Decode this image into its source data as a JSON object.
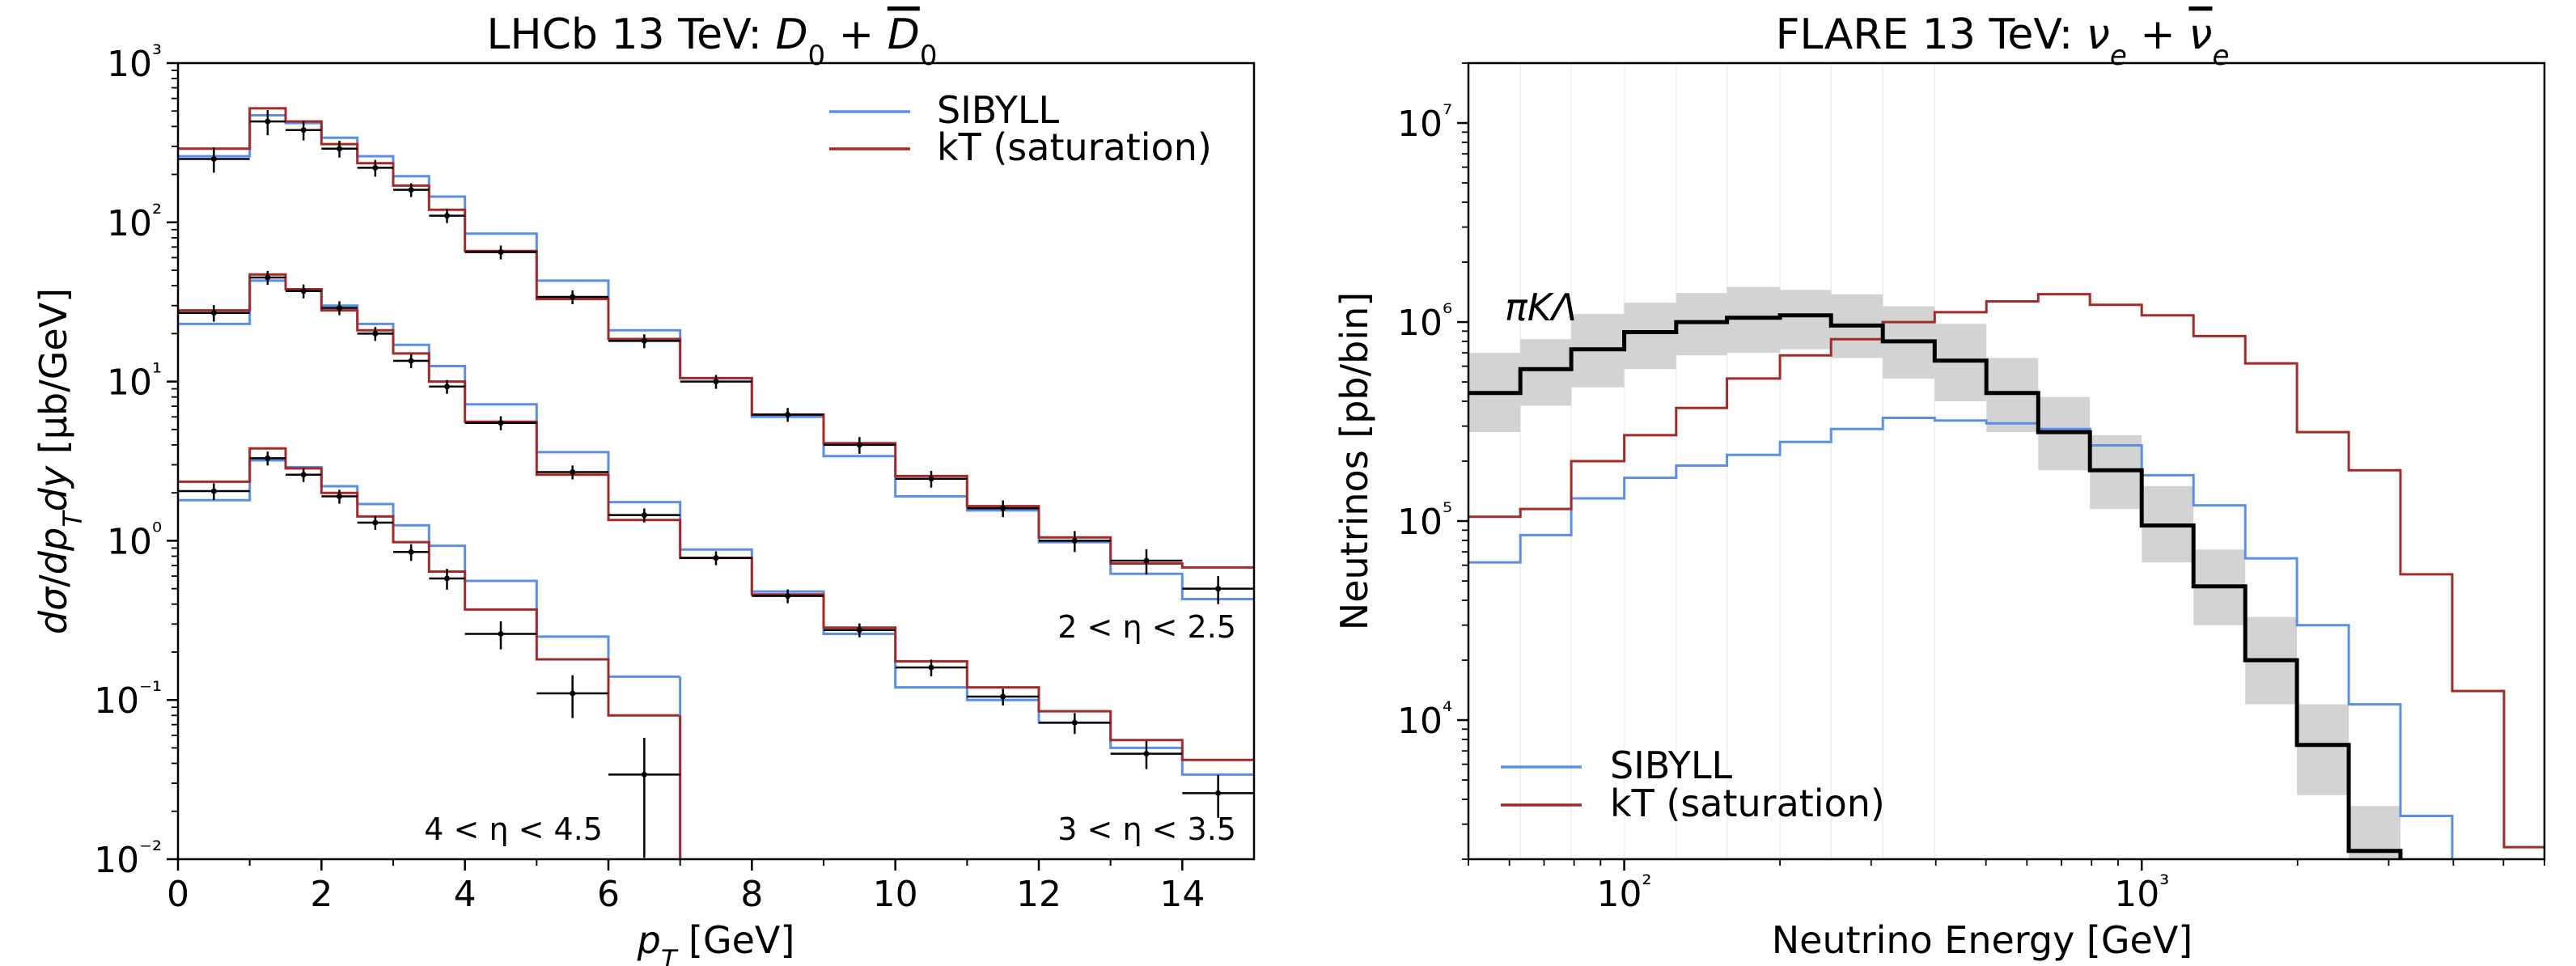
{
  "colors": {
    "sibyll": "#5b8fe6",
    "kt": "#a32a2a",
    "data": "#000000",
    "band": "#d3d3d3"
  },
  "chart_data": [
    {
      "type": "line",
      "title": "LHCb 13 TeV: D₀ + D̄₀",
      "xlabel": "p_T [GeV]",
      "ylabel": "dσ/dp_T dy [μb/GeV]",
      "xscale": "linear",
      "yscale": "log",
      "xlim": [
        0,
        15
      ],
      "ylim": [
        0.01,
        1000
      ],
      "x_ticks": [
        "0",
        "2",
        "4",
        "6",
        "8",
        "10",
        "12",
        "14"
      ],
      "y_ticks": [
        "10⁻²",
        "10⁻¹",
        "10⁰",
        "10¹",
        "10²",
        "10³"
      ],
      "legend": {
        "position": "top-right",
        "entries": [
          "SIBYLL",
          "kT (saturation)"
        ]
      },
      "bin_edges": [
        0,
        1,
        1.5,
        2,
        2.5,
        3,
        3.5,
        4,
        5,
        6,
        7,
        8,
        9,
        10,
        11,
        12,
        13,
        14,
        15
      ],
      "groups": [
        {
          "label": "2 < η < 2.5",
          "series": [
            {
              "name": "SIBYLL",
              "values": [
                260,
                470,
                420,
                340,
                260,
                195,
                145,
                85,
                43,
                21,
                10.5,
                6.0,
                3.4,
                1.9,
                1.55,
                0.98,
                0.62,
                0.43
              ]
            },
            {
              "name": "kT (saturation)",
              "values": [
                290,
                520,
                430,
                310,
                235,
                170,
                120,
                66,
                33,
                18.5,
                10.5,
                6.2,
                4.1,
                2.55,
                1.65,
                1.05,
                0.72,
                0.68
              ]
            }
          ],
          "points": [
            {
              "x": 0.5,
              "y": 250,
              "xerr": 0.5,
              "yerr_frac": 0.18
            },
            {
              "x": 1.25,
              "y": 430,
              "xerr": 0.25,
              "yerr_frac": 0.18
            },
            {
              "x": 1.75,
              "y": 380,
              "xerr": 0.25,
              "yerr_frac": 0.14
            },
            {
              "x": 2.25,
              "y": 290,
              "xerr": 0.25,
              "yerr_frac": 0.12
            },
            {
              "x": 2.75,
              "y": 220,
              "xerr": 0.25,
              "yerr_frac": 0.12
            },
            {
              "x": 3.25,
              "y": 160,
              "xerr": 0.25,
              "yerr_frac": 0.1
            },
            {
              "x": 3.75,
              "y": 110,
              "xerr": 0.25,
              "yerr_frac": 0.1
            },
            {
              "x": 4.5,
              "y": 65,
              "xerr": 0.5,
              "yerr_frac": 0.1
            },
            {
              "x": 5.5,
              "y": 34,
              "xerr": 0.5,
              "yerr_frac": 0.1
            },
            {
              "x": 6.5,
              "y": 18,
              "xerr": 0.5,
              "yerr_frac": 0.1
            },
            {
              "x": 7.5,
              "y": 10,
              "xerr": 0.5,
              "yerr_frac": 0.1
            },
            {
              "x": 8.5,
              "y": 6.2,
              "xerr": 0.5,
              "yerr_frac": 0.1
            },
            {
              "x": 9.5,
              "y": 4.0,
              "xerr": 0.5,
              "yerr_frac": 0.12
            },
            {
              "x": 10.5,
              "y": 2.45,
              "xerr": 0.5,
              "yerr_frac": 0.12
            },
            {
              "x": 11.5,
              "y": 1.6,
              "xerr": 0.5,
              "yerr_frac": 0.12
            },
            {
              "x": 12.5,
              "y": 1.0,
              "xerr": 0.5,
              "yerr_frac": 0.15
            },
            {
              "x": 13.5,
              "y": 0.75,
              "xerr": 0.5,
              "yerr_frac": 0.18
            },
            {
              "x": 14.5,
              "y": 0.5,
              "xerr": 0.5,
              "yerr_frac": 0.2
            }
          ]
        },
        {
          "label": "3 < η < 3.5",
          "series": [
            {
              "name": "SIBYLL",
              "values": [
                23,
                43,
                38,
                30,
                23,
                17,
                12.5,
                7.2,
                3.6,
                1.75,
                0.88,
                0.48,
                0.26,
                0.12,
                0.1,
                0.072,
                0.05,
                0.034
              ]
            },
            {
              "name": "kT (saturation)",
              "values": [
                28,
                47,
                38,
                28,
                21,
                15,
                10,
                5.6,
                2.6,
                1.35,
                0.78,
                0.46,
                0.285,
                0.175,
                0.12,
                0.085,
                0.056,
                0.042
              ]
            }
          ],
          "points": [
            {
              "x": 0.5,
              "y": 27,
              "xerr": 0.5,
              "yerr_frac": 0.12
            },
            {
              "x": 1.25,
              "y": 45,
              "xerr": 0.25,
              "yerr_frac": 0.1
            },
            {
              "x": 1.75,
              "y": 37,
              "xerr": 0.25,
              "yerr_frac": 0.1
            },
            {
              "x": 2.25,
              "y": 29,
              "xerr": 0.25,
              "yerr_frac": 0.1
            },
            {
              "x": 2.75,
              "y": 20,
              "xerr": 0.25,
              "yerr_frac": 0.1
            },
            {
              "x": 3.25,
              "y": 13.5,
              "xerr": 0.25,
              "yerr_frac": 0.1
            },
            {
              "x": 3.75,
              "y": 9.3,
              "xerr": 0.25,
              "yerr_frac": 0.1
            },
            {
              "x": 4.5,
              "y": 5.5,
              "xerr": 0.5,
              "yerr_frac": 0.1
            },
            {
              "x": 5.5,
              "y": 2.7,
              "xerr": 0.5,
              "yerr_frac": 0.1
            },
            {
              "x": 6.5,
              "y": 1.45,
              "xerr": 0.5,
              "yerr_frac": 0.1
            },
            {
              "x": 7.5,
              "y": 0.78,
              "xerr": 0.5,
              "yerr_frac": 0.1
            },
            {
              "x": 8.5,
              "y": 0.45,
              "xerr": 0.5,
              "yerr_frac": 0.1
            },
            {
              "x": 9.5,
              "y": 0.275,
              "xerr": 0.5,
              "yerr_frac": 0.1
            },
            {
              "x": 10.5,
              "y": 0.16,
              "xerr": 0.5,
              "yerr_frac": 0.12
            },
            {
              "x": 11.5,
              "y": 0.105,
              "xerr": 0.5,
              "yerr_frac": 0.12
            },
            {
              "x": 12.5,
              "y": 0.072,
              "xerr": 0.5,
              "yerr_frac": 0.15
            },
            {
              "x": 13.5,
              "y": 0.046,
              "xerr": 0.5,
              "yerr_frac": 0.2
            },
            {
              "x": 14.5,
              "y": 0.026,
              "xerr": 0.5,
              "yerr_frac": 0.3
            }
          ]
        },
        {
          "label": "4 < η < 4.5",
          "series": [
            {
              "name": "SIBYLL",
              "values": [
                1.8,
                3.2,
                2.9,
                2.2,
                1.7,
                1.25,
                0.93,
                0.56,
                0.25,
                0.14
              ]
            },
            {
              "name": "kT (saturation)",
              "values": [
                2.35,
                3.8,
                2.85,
                2.0,
                1.42,
                0.98,
                0.64,
                0.37,
                0.18,
                0.08
              ]
            }
          ],
          "points": [
            {
              "x": 0.5,
              "y": 2.05,
              "xerr": 0.5,
              "yerr_frac": 0.12
            },
            {
              "x": 1.25,
              "y": 3.3,
              "xerr": 0.25,
              "yerr_frac": 0.1
            },
            {
              "x": 1.75,
              "y": 2.6,
              "xerr": 0.25,
              "yerr_frac": 0.1
            },
            {
              "x": 2.25,
              "y": 1.9,
              "xerr": 0.25,
              "yerr_frac": 0.1
            },
            {
              "x": 2.75,
              "y": 1.3,
              "xerr": 0.25,
              "yerr_frac": 0.1
            },
            {
              "x": 3.25,
              "y": 0.85,
              "xerr": 0.25,
              "yerr_frac": 0.12
            },
            {
              "x": 3.75,
              "y": 0.58,
              "xerr": 0.25,
              "yerr_frac": 0.15
            },
            {
              "x": 4.5,
              "y": 0.26,
              "xerr": 0.5,
              "yerr_frac": 0.2
            },
            {
              "x": 5.5,
              "y": 0.11,
              "xerr": 0.5,
              "yerr_frac": 0.3
            },
            {
              "x": 6.5,
              "y": 0.034,
              "xerr": 0.5,
              "yerr_frac": 0.7
            }
          ]
        }
      ]
    },
    {
      "type": "line",
      "title": "FLARE 13 TeV: νₑ + ν̄ₑ",
      "xlabel": "Neutrino Energy [GeV]",
      "ylabel": "Neutrinos [pb/bin]",
      "xscale": "log",
      "yscale": "log",
      "xlim": [
        50,
        6000
      ],
      "ylim": [
        2000,
        20000000
      ],
      "x_ticks": [
        "10²",
        "10³"
      ],
      "y_ticks": [
        "10⁴",
        "10⁵",
        "10⁶",
        "10⁷"
      ],
      "legend": {
        "position": "lower-left",
        "entries": [
          "SIBYLL",
          "kT (saturation)"
        ]
      },
      "annotation": "πKΛ",
      "bin_edges": [
        50,
        63,
        79,
        100,
        126,
        158,
        200,
        251,
        316,
        398,
        501,
        631,
        794,
        1000,
        1259,
        1585,
        1995,
        2512,
        3162,
        3981,
        5012,
        6310
      ],
      "series": [
        {
          "name": "SIBYLL",
          "values": [
            62000,
            85000,
            130000,
            165000,
            190000,
            215000,
            250000,
            290000,
            330000,
            320000,
            310000,
            290000,
            240000,
            170000,
            120000,
            65000,
            30000,
            12000,
            3300,
            1800,
            1200
          ]
        },
        {
          "name": "kT (saturation)",
          "values": [
            105000,
            115000,
            200000,
            270000,
            370000,
            520000,
            680000,
            820000,
            1000000,
            1120000,
            1270000,
            1380000,
            1220000,
            1080000,
            850000,
            620000,
            280000,
            180000,
            54000,
            14000,
            2300
          ]
        },
        {
          "name": "πKΛ",
          "values": [
            440000,
            580000,
            730000,
            890000,
            1000000,
            1050000,
            1080000,
            960000,
            800000,
            640000,
            440000,
            280000,
            180000,
            95000,
            47000,
            20000,
            7500,
            2200,
            1500,
            1500,
            1500
          ]
        }
      ],
      "band": {
        "upper": [
          700000,
          820000,
          1100000,
          1250000,
          1400000,
          1500000,
          1450000,
          1380000,
          1200000,
          980000,
          660000,
          420000,
          270000,
          150000,
          72000,
          33000,
          12000,
          3700,
          2000,
          2000,
          2000
        ],
        "lower": [
          280000,
          380000,
          470000,
          580000,
          680000,
          700000,
          730000,
          660000,
          520000,
          400000,
          280000,
          180000,
          115000,
          62000,
          30000,
          12000,
          4200,
          1500,
          1000,
          1000,
          1000
        ]
      }
    }
  ],
  "panels": {
    "left": {
      "title_text": "LHCb 13 TeV: ",
      "xlabel_text": "[GeV]",
      "ylabel_text": "[μb/GeV]"
    },
    "right": {
      "title_text": "FLARE 13 TeV: "
    }
  },
  "legend": {
    "sibyll_label": "SIBYLL",
    "kt_label": "kT (saturation)"
  }
}
